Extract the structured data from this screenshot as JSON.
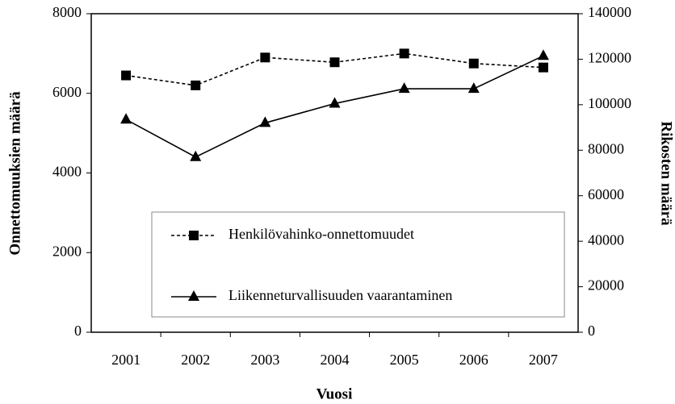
{
  "chart_data": {
    "type": "line",
    "x_label": "Vuosi",
    "y_label": "Onnettomuuksien määrä",
    "y2_label": "Rikosten määrä",
    "categories": [
      "2001",
      "2002",
      "2003",
      "2004",
      "2005",
      "2006",
      "2007"
    ],
    "series": [
      {
        "name": "Henkilövahinko-onnettomuudet",
        "color": "#000000",
        "line_style": "dashed",
        "marker": "square",
        "values": [
          6450,
          6200,
          6900,
          6780,
          7000,
          6750,
          6650
        ]
      },
      {
        "name": "Liikenneturvallisuuden vaarantaminen",
        "color": "#000000",
        "line_style": "solid",
        "marker": "triangle",
        "axis": "y2",
        "values": [
          93500,
          77000,
          92000,
          100500,
          107000,
          107000,
          121500
        ]
      }
    ],
    "ylim": [
      0,
      8000
    ],
    "yticks": [
      0,
      2000,
      4000,
      6000,
      8000
    ],
    "y2lim": [
      0,
      140000
    ],
    "y2ticks": [
      0,
      20000,
      40000,
      60000,
      80000,
      100000,
      120000,
      140000
    ]
  }
}
